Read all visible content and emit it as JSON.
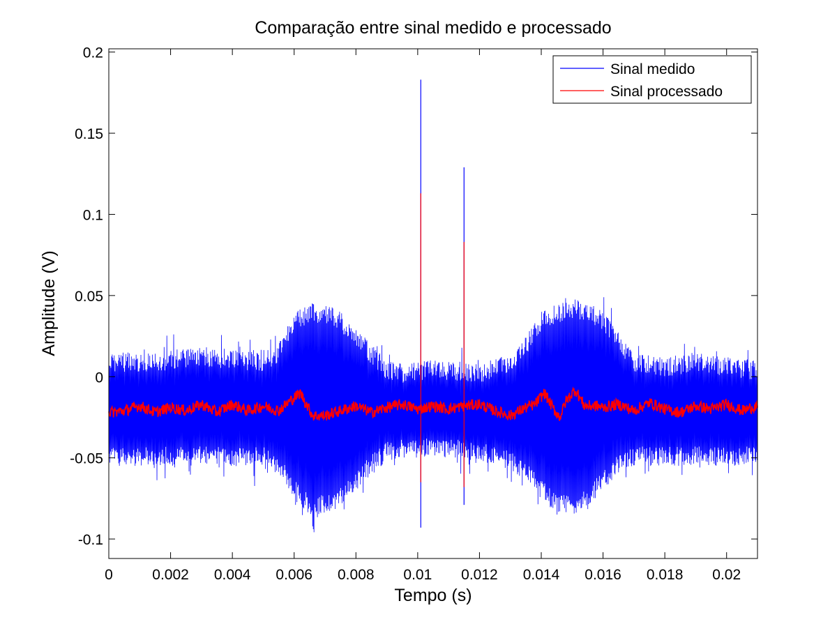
{
  "chart_data": {
    "type": "line",
    "title": "Comparação entre sinal medido e processado",
    "xlabel": "Tempo (s)",
    "ylabel": "Amplitude (V)",
    "xlim": [
      0,
      0.021
    ],
    "ylim": [
      -0.112,
      0.202
    ],
    "grid": false,
    "legend_position": "top-right",
    "xticks": [
      0,
      0.002,
      0.004,
      0.006,
      0.008,
      0.01,
      0.012,
      0.014,
      0.016,
      0.018,
      0.02
    ],
    "xtick_labels": [
      "0",
      "0.002",
      "0.004",
      "0.006",
      "0.008",
      "0.01",
      "0.012",
      "0.014",
      "0.016",
      "0.018",
      "0.02"
    ],
    "yticks": [
      -0.1,
      -0.05,
      0,
      0.05,
      0.1,
      0.15,
      0.2
    ],
    "ytick_labels": [
      "-0.1",
      "-0.05",
      "0",
      "0.05",
      "0.1",
      "0.15",
      "0.2"
    ],
    "series": [
      {
        "name": "Sinal medido",
        "color": "#0000ff",
        "description": "dense oscillating signal centred near -0.02 V",
        "envelope_x": [
          0,
          0.001,
          0.002,
          0.003,
          0.004,
          0.005,
          0.0055,
          0.006,
          0.0065,
          0.007,
          0.0075,
          0.008,
          0.0085,
          0.009,
          0.0095,
          0.01,
          0.011,
          0.012,
          0.013,
          0.0135,
          0.014,
          0.0145,
          0.015,
          0.0155,
          0.016,
          0.0165,
          0.017,
          0.018,
          0.019,
          0.02,
          0.021
        ],
        "envelope_upper": [
          0.015,
          0.015,
          0.016,
          0.018,
          0.016,
          0.015,
          0.02,
          0.04,
          0.045,
          0.045,
          0.04,
          0.03,
          0.02,
          0.01,
          0.008,
          0.01,
          0.01,
          0.008,
          0.015,
          0.025,
          0.04,
          0.045,
          0.048,
          0.046,
          0.04,
          0.028,
          0.015,
          0.012,
          0.015,
          0.012,
          0.01
        ],
        "envelope_lower": [
          -0.055,
          -0.055,
          -0.055,
          -0.055,
          -0.055,
          -0.055,
          -0.06,
          -0.075,
          -0.085,
          -0.085,
          -0.08,
          -0.07,
          -0.06,
          -0.052,
          -0.05,
          -0.05,
          -0.05,
          -0.052,
          -0.058,
          -0.065,
          -0.075,
          -0.085,
          -0.085,
          -0.08,
          -0.07,
          -0.06,
          -0.055,
          -0.055,
          -0.055,
          -0.055,
          -0.055
        ],
        "spikes": [
          {
            "x": 0.0101,
            "max": 0.183,
            "min": -0.093
          },
          {
            "x": 0.0115,
            "max": 0.129,
            "min": -0.079
          }
        ]
      },
      {
        "name": "Sinal processado",
        "color": "#ff0000",
        "description": "smoothed signal around -0.02 V with slow oscillations",
        "x": [
          0,
          0.0005,
          0.001,
          0.0015,
          0.002,
          0.0025,
          0.003,
          0.0035,
          0.004,
          0.0045,
          0.005,
          0.0055,
          0.0058,
          0.0062,
          0.0066,
          0.007,
          0.0075,
          0.008,
          0.0085,
          0.009,
          0.0095,
          0.01,
          0.0105,
          0.011,
          0.0115,
          0.012,
          0.0125,
          0.013,
          0.0135,
          0.0138,
          0.0141,
          0.0144,
          0.0146,
          0.0148,
          0.0151,
          0.0154,
          0.0158,
          0.016,
          0.0165,
          0.017,
          0.0175,
          0.018,
          0.0185,
          0.019,
          0.0195,
          0.02,
          0.0205,
          0.021
        ],
        "y": [
          -0.022,
          -0.021,
          -0.018,
          -0.022,
          -0.019,
          -0.021,
          -0.017,
          -0.022,
          -0.017,
          -0.021,
          -0.018,
          -0.021,
          -0.016,
          -0.01,
          -0.024,
          -0.024,
          -0.021,
          -0.018,
          -0.022,
          -0.019,
          -0.017,
          -0.02,
          -0.018,
          -0.02,
          -0.018,
          -0.017,
          -0.021,
          -0.024,
          -0.019,
          -0.017,
          -0.01,
          -0.02,
          -0.025,
          -0.015,
          -0.008,
          -0.018,
          -0.018,
          -0.019,
          -0.017,
          -0.021,
          -0.016,
          -0.02,
          -0.022,
          -0.018,
          -0.02,
          -0.017,
          -0.021,
          -0.018
        ],
        "spikes": [
          {
            "x": 0.0101,
            "max": 0.113,
            "min": -0.065
          },
          {
            "x": 0.0115,
            "max": 0.083,
            "min": -0.068
          }
        ]
      }
    ]
  }
}
